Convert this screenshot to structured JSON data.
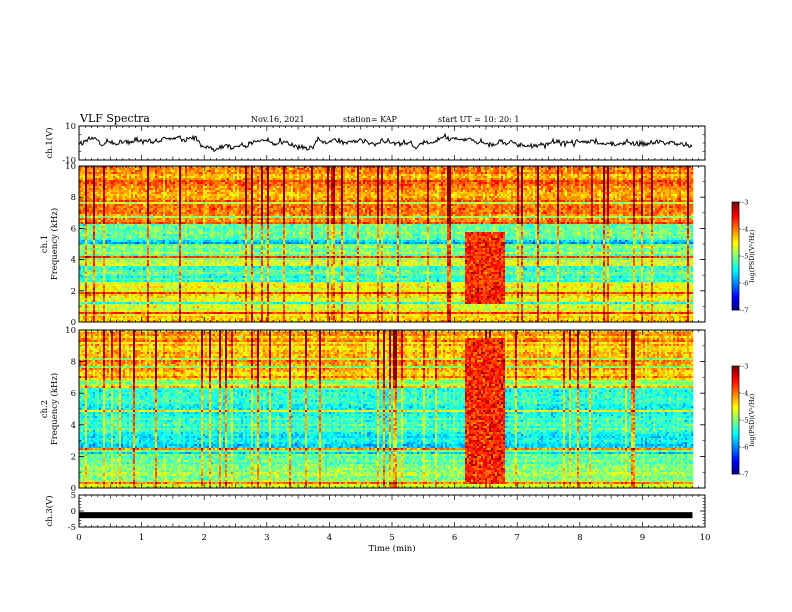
{
  "header": {
    "title": "VLF Spectra",
    "date": "Nov.16, 2021",
    "station": "station= KAP",
    "start_ut": "start  UT =   10: 20: 1"
  },
  "chart_data": [
    {
      "type": "line",
      "name": "ch1-waveform",
      "ylabel": "ch.1(V)",
      "ylim": [
        -10,
        10
      ],
      "yticks": [
        "10",
        "-10"
      ],
      "x_range_min": [
        0,
        9.8
      ],
      "description_visible": "noisy waveform oscillating roughly between -4 and 4 V",
      "color": "#000000"
    },
    {
      "type": "heatmap",
      "name": "ch1-spectrogram",
      "ylabel": "ch.1\nFrequency  (kHz)",
      "ylim": [
        0,
        10
      ],
      "yticks": [
        "0",
        "2",
        "4",
        "6",
        "8",
        "10"
      ],
      "x_range_min": [
        0,
        9.8
      ],
      "colorbar": {
        "label": "log(PSD)(V²/Hz)",
        "range": [
          -7,
          -3
        ],
        "ticks": [
          "-3",
          "-4",
          "-5",
          "-6",
          "-7"
        ]
      },
      "features": {
        "interference_window_min": [
          6.15,
          6.8
        ],
        "interference_band_khz": [
          1.2,
          5.8
        ],
        "background_level_low_khz": -4.6,
        "background_level_high_khz": -4.0
      }
    },
    {
      "type": "heatmap",
      "name": "ch2-spectrogram",
      "ylabel": "ch.2\nFrequency  (kHz)",
      "ylim": [
        0,
        10
      ],
      "yticks": [
        "0",
        "2",
        "4",
        "6",
        "8",
        "10"
      ],
      "x_range_min": [
        0,
        9.8
      ],
      "colorbar": {
        "label": "log(PSD)(V²/Hz)",
        "range": [
          -7,
          -3
        ],
        "ticks": [
          "-3",
          "-4",
          "-5",
          "-6",
          "-7"
        ]
      },
      "features": {
        "interference_window_min": [
          6.15,
          6.8
        ],
        "interference_band_khz": [
          0.3,
          9.6
        ],
        "background_level_low_khz": -5.0,
        "background_level_high_khz": -4.2
      }
    },
    {
      "type": "line",
      "name": "ch3-waveform",
      "ylabel": "ch.3(V)",
      "ylim": [
        -5,
        5
      ],
      "yticks": [
        "5",
        "0",
        "-5"
      ],
      "x_range_min": [
        0,
        9.8
      ],
      "value_v": -1.3,
      "color": "#000000"
    }
  ],
  "x_axis": {
    "label": "Time  (min)",
    "ticks": [
      "0",
      "1",
      "2",
      "3",
      "4",
      "5",
      "6",
      "7",
      "8",
      "9",
      "10"
    ],
    "xlim": [
      0,
      10
    ]
  }
}
